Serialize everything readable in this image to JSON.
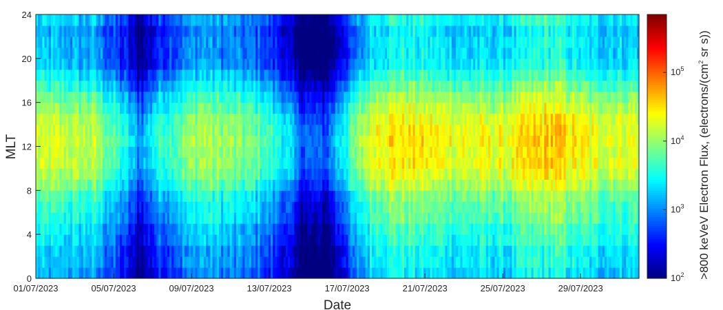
{
  "chart_data": {
    "type": "heatmap",
    "xlabel": "Date",
    "ylabel": "MLT",
    "x_tick_labels": [
      "01/07/2023",
      "05/07/2023",
      "09/07/2023",
      "13/07/2023",
      "17/07/2023",
      "21/07/2023",
      "25/07/2023",
      "29/07/2023"
    ],
    "x_range_days": [
      0,
      31
    ],
    "y_ticks": [
      0,
      4,
      8,
      12,
      16,
      20,
      24
    ],
    "ylim": [
      0,
      24
    ],
    "colorbar": {
      "label_main": ">800 keVeV Electron Flux, (electrons/(cm",
      "label_exp": "2",
      "label_tail": " sr s))",
      "scale": "log",
      "range": [
        100,
        700000
      ],
      "tick_values": [
        100,
        1000,
        10000,
        100000
      ],
      "tick_bases": [
        "10",
        "10",
        "10",
        "10"
      ],
      "tick_exps": [
        "2",
        "3",
        "4",
        "5"
      ],
      "colormap": "jet"
    },
    "profile_days": [
      0,
      3,
      4.6,
      5.3,
      6.3,
      8.5,
      11.5,
      12.8,
      13.6,
      14.9,
      15.8,
      16.7,
      17.4,
      18.5,
      20,
      22,
      24,
      26.5,
      28.5,
      31
    ],
    "profile_log_flux": [
      3.8,
      3.7,
      3.1,
      2.6,
      3.2,
      3.7,
      3.4,
      3.0,
      2.45,
      2.35,
      3.1,
      3.6,
      4.0,
      4.1,
      4.0,
      3.9,
      3.9,
      4.2,
      3.9,
      3.9
    ],
    "mlt_log_offsets": [
      -0.65,
      -0.55,
      -0.55,
      -0.4,
      -0.35,
      -0.2,
      -0.15,
      -0.05,
      0.15,
      0.3,
      0.4,
      0.4,
      0.45,
      0.4,
      0.35,
      0.2,
      0.05,
      -0.15,
      -0.35,
      -0.55,
      -0.6,
      -0.6,
      -0.65,
      -0.5
    ]
  }
}
